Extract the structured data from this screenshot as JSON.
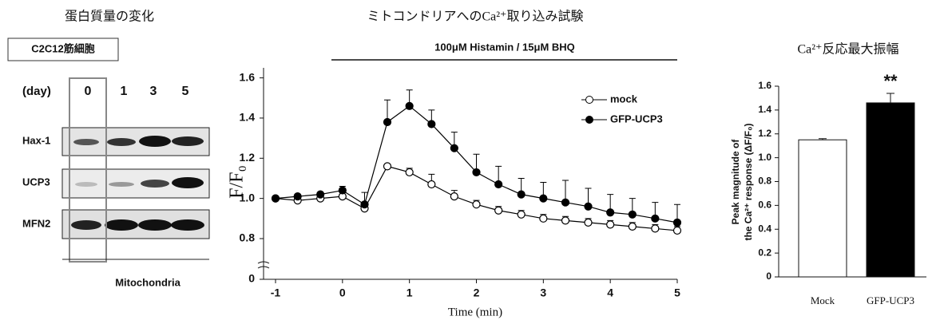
{
  "blot": {
    "title": "蛋白質量の変化",
    "cell_line": "C2C12筋細胞",
    "day_label": "(day)",
    "lanes": [
      "0",
      "1",
      "3",
      "5"
    ],
    "rows": [
      "Hax-1",
      "UCP3",
      "MFN2"
    ],
    "fraction": "Mitochondria"
  },
  "chart_data": [
    {
      "type": "line",
      "title": "ミトコンドリアへのCa²⁺取り込み試験",
      "annotation": "100μM Histamin / 15μM BHQ",
      "xlabel": "Time (min)",
      "ylabel": "F/F₀",
      "x": [
        -1,
        -0.67,
        -0.33,
        0,
        0.33,
        0.67,
        1,
        1.33,
        1.67,
        2,
        2.33,
        2.67,
        3,
        3.33,
        3.67,
        4,
        4.33,
        4.67,
        5
      ],
      "series": [
        {
          "name": "mock",
          "color": "#000000",
          "marker_fill": "#ffffff",
          "values": [
            1.0,
            0.99,
            1.0,
            1.01,
            0.95,
            1.16,
            1.13,
            1.07,
            1.01,
            0.97,
            0.94,
            0.92,
            0.9,
            0.89,
            0.88,
            0.87,
            0.86,
            0.85,
            0.84
          ],
          "errors": [
            0.01,
            0.01,
            0.01,
            0.02,
            0.01,
            0.01,
            0.02,
            0.05,
            0.03,
            0.02,
            0.02,
            0.02,
            0.02,
            0.02,
            0.02,
            0.02,
            0.02,
            0.02,
            0.02
          ]
        },
        {
          "name": "GFP-UCP3",
          "color": "#000000",
          "marker_fill": "#000000",
          "values": [
            1.0,
            1.01,
            1.02,
            1.04,
            0.97,
            1.38,
            1.46,
            1.37,
            1.25,
            1.13,
            1.07,
            1.02,
            1.0,
            0.98,
            0.96,
            0.93,
            0.92,
            0.9,
            0.88
          ],
          "errors": [
            0.01,
            0.01,
            0.01,
            0.02,
            0.06,
            0.11,
            0.08,
            0.07,
            0.08,
            0.09,
            0.09,
            0.08,
            0.08,
            0.11,
            0.09,
            0.09,
            0.08,
            0.08,
            0.09
          ]
        }
      ],
      "xlim": [
        -1,
        5
      ],
      "xticks": [
        -1,
        0,
        1,
        2,
        3,
        4,
        5
      ],
      "ylim": [
        0,
        1.65
      ],
      "yticks": [
        0,
        0.8,
        {
          "value": 1,
          "label": "1.0"
        },
        1.2,
        1.4,
        1.6
      ],
      "axis_break": true,
      "legend": "top-right"
    },
    {
      "type": "bar",
      "title": "Ca²⁺反応最大振幅",
      "ylabel": [
        "Peak magnitude of",
        "the Ca²⁺ response (ΔF/F₀)"
      ],
      "categories": [
        "Mock",
        "GFP-UCP3"
      ],
      "values": [
        1.15,
        1.46
      ],
      "errors": [
        0.01,
        0.08
      ],
      "colors": [
        "#ffffff",
        "#000000"
      ],
      "significance": [
        null,
        "**"
      ],
      "ylim": [
        0,
        1.6
      ],
      "yticks": [
        0,
        0.2,
        0.4,
        0.6,
        0.8,
        {
          "value": 1,
          "label": "1.0"
        },
        1.2,
        1.4,
        1.6
      ]
    }
  ]
}
